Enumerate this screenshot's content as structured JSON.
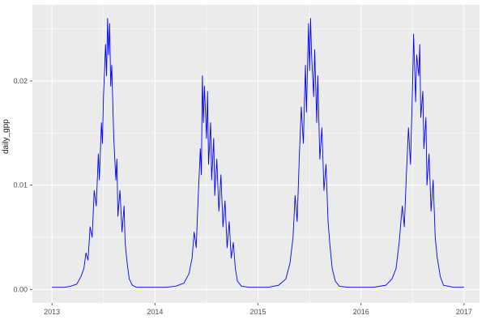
{
  "figure": {
    "background": "#FFFFFF",
    "panel_background": "#EBEBEB",
    "grid_major_color": "#FFFFFF",
    "grid_minor_color": "#FFFFFF",
    "line_color": "#0000FF",
    "axis_text_color": "#4D4D4D",
    "tick_color": "#333333"
  },
  "chart_data": {
    "type": "line",
    "title": "",
    "xlabel": "",
    "ylabel": "daily_gpp",
    "legend": "none",
    "grid": true,
    "xlim": [
      2012.81,
      2017.15
    ],
    "ylim": [
      -0.0013,
      0.0273
    ],
    "x_ticks": [
      2013,
      2014,
      2015,
      2016,
      2017
    ],
    "x_tick_labels": [
      "2013",
      "2014",
      "2015",
      "2016",
      "2017"
    ],
    "x_minor_ticks": [
      2013.5,
      2014.5,
      2015.5,
      2016.5
    ],
    "y_ticks": [
      0,
      0.01,
      0.02
    ],
    "y_tick_labels": [
      "0.00",
      "0.01",
      "0.02"
    ],
    "y_minor_ticks": [
      0.005,
      0.015,
      0.025
    ],
    "series": [
      {
        "name": "daily_gpp",
        "points": [
          [
            2013.0,
            0.0002
          ],
          [
            2013.06,
            0.0002
          ],
          [
            2013.12,
            0.0002
          ],
          [
            2013.18,
            0.0003
          ],
          [
            2013.24,
            0.0005
          ],
          [
            2013.28,
            0.0012
          ],
          [
            2013.31,
            0.002
          ],
          [
            2013.33,
            0.0035
          ],
          [
            2013.35,
            0.0028
          ],
          [
            2013.37,
            0.006
          ],
          [
            2013.39,
            0.005
          ],
          [
            2013.41,
            0.0095
          ],
          [
            2013.43,
            0.008
          ],
          [
            2013.45,
            0.013
          ],
          [
            2013.46,
            0.0105
          ],
          [
            2013.48,
            0.016
          ],
          [
            2013.49,
            0.014
          ],
          [
            2013.5,
            0.0185
          ],
          [
            2013.52,
            0.0235
          ],
          [
            2013.53,
            0.0205
          ],
          [
            2013.54,
            0.026
          ],
          [
            2013.55,
            0.0225
          ],
          [
            2013.56,
            0.0255
          ],
          [
            2013.57,
            0.0195
          ],
          [
            2013.58,
            0.0215
          ],
          [
            2013.6,
            0.0145
          ],
          [
            2013.62,
            0.0105
          ],
          [
            2013.63,
            0.0125
          ],
          [
            2013.64,
            0.007
          ],
          [
            2013.66,
            0.0095
          ],
          [
            2013.68,
            0.0055
          ],
          [
            2013.7,
            0.008
          ],
          [
            2013.71,
            0.0045
          ],
          [
            2013.73,
            0.0025
          ],
          [
            2013.75,
            0.001
          ],
          [
            2013.78,
            0.0004
          ],
          [
            2013.82,
            0.0002
          ],
          [
            2013.9,
            0.0002
          ],
          [
            2014.0,
            0.0002
          ],
          [
            2014.1,
            0.0002
          ],
          [
            2014.2,
            0.0003
          ],
          [
            2014.28,
            0.0006
          ],
          [
            2014.33,
            0.0015
          ],
          [
            2014.36,
            0.003
          ],
          [
            2014.38,
            0.0055
          ],
          [
            2014.4,
            0.004
          ],
          [
            2014.42,
            0.009
          ],
          [
            2014.44,
            0.0135
          ],
          [
            2014.45,
            0.011
          ],
          [
            2014.46,
            0.0205
          ],
          [
            2014.47,
            0.016
          ],
          [
            2014.48,
            0.0195
          ],
          [
            2014.5,
            0.0145
          ],
          [
            2014.51,
            0.019
          ],
          [
            2014.52,
            0.012
          ],
          [
            2014.54,
            0.016
          ],
          [
            2014.55,
            0.0105
          ],
          [
            2014.57,
            0.0145
          ],
          [
            2014.58,
            0.009
          ],
          [
            2014.6,
            0.0125
          ],
          [
            2014.62,
            0.0075
          ],
          [
            2014.64,
            0.011
          ],
          [
            2014.66,
            0.006
          ],
          [
            2014.68,
            0.0085
          ],
          [
            2014.7,
            0.004
          ],
          [
            2014.72,
            0.0065
          ],
          [
            2014.74,
            0.003
          ],
          [
            2014.76,
            0.0045
          ],
          [
            2014.78,
            0.002
          ],
          [
            2014.8,
            0.0008
          ],
          [
            2014.84,
            0.0003
          ],
          [
            2014.92,
            0.0002
          ],
          [
            2015.0,
            0.0002
          ],
          [
            2015.1,
            0.0002
          ],
          [
            2015.2,
            0.0004
          ],
          [
            2015.27,
            0.001
          ],
          [
            2015.31,
            0.0025
          ],
          [
            2015.34,
            0.005
          ],
          [
            2015.36,
            0.009
          ],
          [
            2015.38,
            0.0065
          ],
          [
            2015.4,
            0.0125
          ],
          [
            2015.42,
            0.0175
          ],
          [
            2015.44,
            0.014
          ],
          [
            2015.46,
            0.0215
          ],
          [
            2015.47,
            0.017
          ],
          [
            2015.49,
            0.0255
          ],
          [
            2015.5,
            0.021
          ],
          [
            2015.51,
            0.026
          ],
          [
            2015.52,
            0.0225
          ],
          [
            2015.54,
            0.0185
          ],
          [
            2015.55,
            0.023
          ],
          [
            2015.57,
            0.016
          ],
          [
            2015.58,
            0.0205
          ],
          [
            2015.6,
            0.0125
          ],
          [
            2015.62,
            0.0155
          ],
          [
            2015.64,
            0.0095
          ],
          [
            2015.66,
            0.012
          ],
          [
            2015.68,
            0.0065
          ],
          [
            2015.7,
            0.004
          ],
          [
            2015.72,
            0.002
          ],
          [
            2015.75,
            0.0008
          ],
          [
            2015.79,
            0.0003
          ],
          [
            2015.88,
            0.0002
          ],
          [
            2016.0,
            0.0002
          ],
          [
            2016.12,
            0.0002
          ],
          [
            2016.24,
            0.0004
          ],
          [
            2016.3,
            0.001
          ],
          [
            2016.34,
            0.002
          ],
          [
            2016.37,
            0.0045
          ],
          [
            2016.4,
            0.008
          ],
          [
            2016.42,
            0.006
          ],
          [
            2016.44,
            0.011
          ],
          [
            2016.46,
            0.0155
          ],
          [
            2016.48,
            0.012
          ],
          [
            2016.5,
            0.0195
          ],
          [
            2016.51,
            0.0245
          ],
          [
            2016.53,
            0.018
          ],
          [
            2016.54,
            0.0225
          ],
          [
            2016.56,
            0.0205
          ],
          [
            2016.57,
            0.0235
          ],
          [
            2016.58,
            0.0165
          ],
          [
            2016.6,
            0.019
          ],
          [
            2016.61,
            0.0135
          ],
          [
            2016.63,
            0.0165
          ],
          [
            2016.64,
            0.01
          ],
          [
            2016.66,
            0.013
          ],
          [
            2016.68,
            0.0075
          ],
          [
            2016.7,
            0.0105
          ],
          [
            2016.72,
            0.005
          ],
          [
            2016.74,
            0.003
          ],
          [
            2016.77,
            0.0012
          ],
          [
            2016.8,
            0.0004
          ],
          [
            2016.9,
            0.0002
          ],
          [
            2017.0,
            0.0002
          ]
        ]
      }
    ]
  }
}
